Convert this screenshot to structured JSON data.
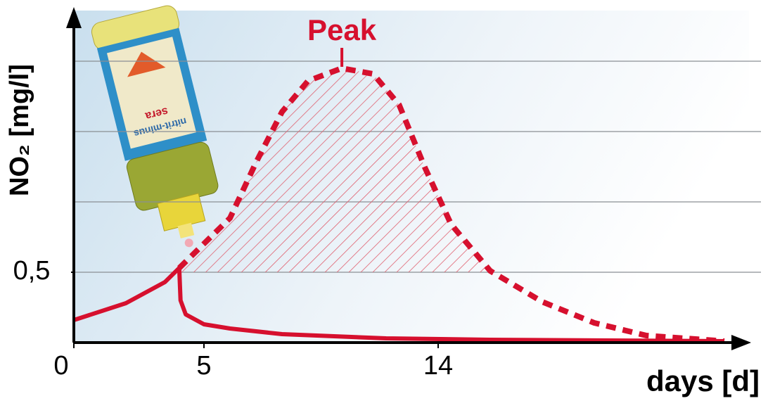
{
  "chart_data": {
    "type": "line",
    "y_label": "NO₂ [mg/l]",
    "x_label": "days [d]",
    "annotation": "Peak",
    "product_label": [
      "sera",
      "nitrit-minus"
    ],
    "xlim": [
      0,
      25
    ],
    "ylim": [
      0,
      2.36
    ],
    "xticks": [
      0,
      5,
      14
    ],
    "yticks": [
      {
        "value": 0.5,
        "label": "0,5"
      }
    ],
    "ygrid": [
      0.5,
      1,
      1.5,
      2
    ],
    "grid": true,
    "series": [
      {
        "color": "#d6102e",
        "line_style": "solid",
        "x": [
          0,
          2,
          3.5,
          4.05,
          4.1,
          4.3,
          5,
          6,
          8,
          12,
          16,
          25
        ],
        "values": [
          0.16,
          0.28,
          0.43,
          0.53,
          0.3,
          0.2,
          0.13,
          0.1,
          0.06,
          0.03,
          0.02,
          0.01
        ]
      },
      {
        "color": "#d6102e",
        "line_style": "dashed",
        "x": [
          4.05,
          6,
          7,
          8,
          9,
          10.3,
          11.5,
          12.5,
          13.5,
          14.5,
          16,
          18,
          20,
          22,
          25
        ],
        "values": [
          0.53,
          0.885,
          1.28,
          1.64,
          1.86,
          1.95,
          1.91,
          1.69,
          1.24,
          0.84,
          0.51,
          0.29,
          0.14,
          0.05,
          0.01
        ]
      }
    ]
  }
}
